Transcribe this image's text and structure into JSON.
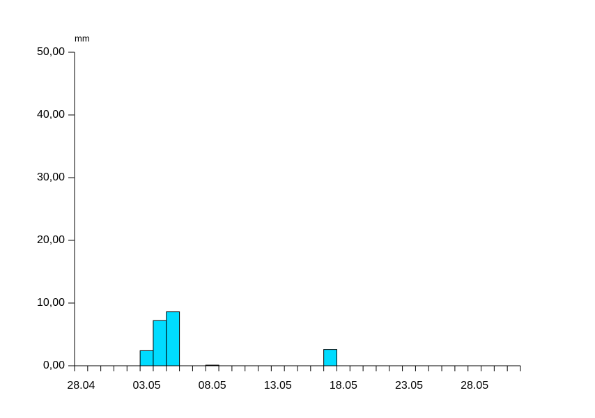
{
  "chart_data": {
    "type": "bar",
    "y_unit": "mm",
    "categories": [
      "28.04",
      null,
      null,
      null,
      null,
      "03.05",
      null,
      null,
      null,
      null,
      "08.05",
      null,
      null,
      null,
      null,
      "13.05",
      null,
      null,
      null,
      null,
      "18.05",
      null,
      null,
      null,
      null,
      "23.05",
      null,
      null,
      null,
      null,
      "28.05",
      null,
      null,
      null
    ],
    "values": [
      0,
      0,
      0,
      0,
      0,
      2.4,
      7.2,
      8.6,
      0,
      0,
      0.1,
      0,
      0,
      0,
      0,
      0,
      0,
      0,
      0,
      2.6,
      0,
      0,
      0,
      0,
      0,
      0,
      0,
      0,
      0,
      0,
      0,
      0,
      0,
      0
    ],
    "color": "#00dcff",
    "ylim": [
      0,
      50
    ],
    "yticks": [
      {
        "value": 0,
        "label": "0,00"
      },
      {
        "value": 10,
        "label": "10,00"
      },
      {
        "value": 20,
        "label": "20,00"
      },
      {
        "value": 30,
        "label": "30,00"
      },
      {
        "value": 40,
        "label": "40,00"
      },
      {
        "value": 50,
        "label": "50,00"
      }
    ]
  }
}
